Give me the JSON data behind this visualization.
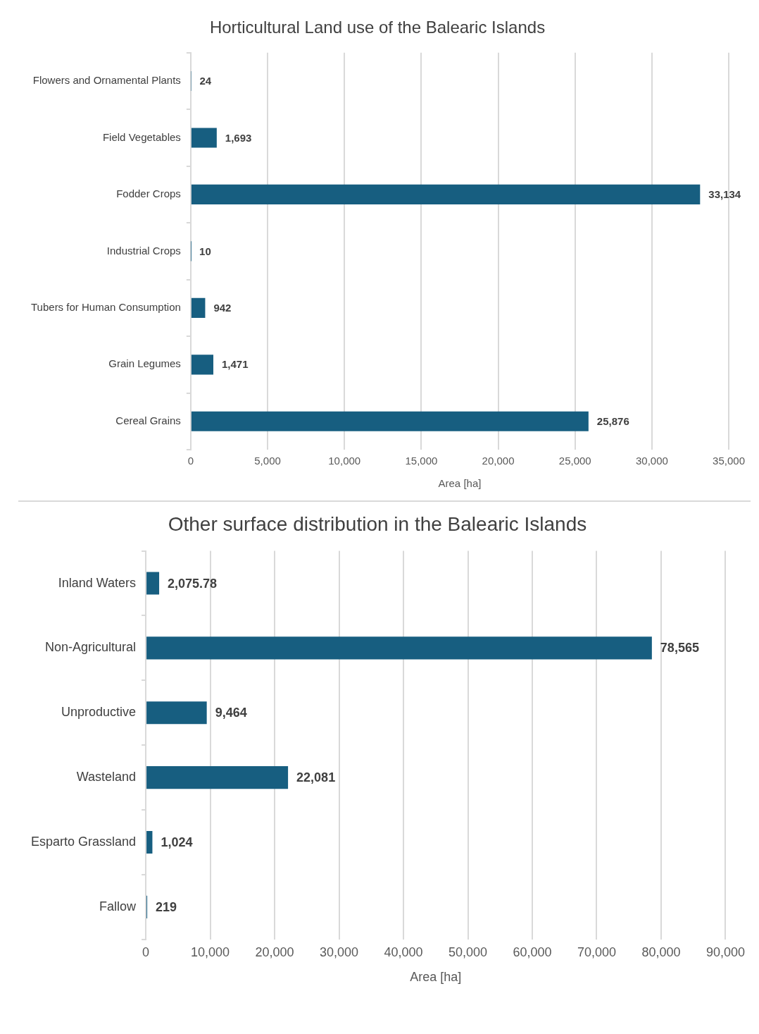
{
  "chart_data": [
    {
      "type": "bar",
      "orientation": "horizontal",
      "title": "Horticultural Land use of the Balearic Islands",
      "xlabel": "Area [ha]",
      "categories": [
        "Flowers and Ornamental Plants",
        "Field Vegetables",
        "Fodder Crops",
        "Industrial Crops",
        "Tubers for Human Consumption",
        "Grain Legumes",
        "Cereal Grains"
      ],
      "values": [
        24,
        1693,
        33134,
        10,
        942,
        1471,
        25876
      ],
      "color": "#175e80",
      "xlim": [
        0,
        35000
      ],
      "xticks": [
        0,
        {
          "value": 5000,
          "label": "5,000"
        },
        {
          "value": 10000,
          "label": "10,000"
        },
        {
          "value": 15000,
          "label": "15,000"
        },
        {
          "value": 20000,
          "label": "20,000"
        },
        {
          "value": 25000,
          "label": "25,000"
        },
        {
          "value": 30000,
          "label": "30,000"
        },
        {
          "value": 35000,
          "label": "35,000"
        }
      ],
      "grid": "x",
      "value_labels": [
        "24",
        "1,693",
        "33,134",
        "10",
        "942",
        "1,471",
        "25,876"
      ]
    },
    {
      "type": "bar",
      "orientation": "horizontal",
      "title": "Other surface distribution in the Balearic Islands",
      "xlabel": "Area [ha]",
      "categories": [
        "Inland Waters",
        "Non-Agricultural",
        "Unproductive",
        "Wasteland",
        "Esparto Grassland",
        "Fallow"
      ],
      "values": [
        2075.78,
        78565,
        9464,
        22081,
        1024,
        219
      ],
      "color": "#175e80",
      "xlim": [
        0,
        90000
      ],
      "xticks": [
        0,
        {
          "value": 10000,
          "label": "10,000"
        },
        {
          "value": 20000,
          "label": "20,000"
        },
        {
          "value": 30000,
          "label": "30,000"
        },
        {
          "value": 40000,
          "label": "40,000"
        },
        {
          "value": 50000,
          "label": "50,000"
        },
        {
          "value": 60000,
          "label": "60,000"
        },
        {
          "value": 70000,
          "label": "70,000"
        },
        {
          "value": 80000,
          "label": "80,000"
        },
        {
          "value": 90000,
          "label": "90,000"
        }
      ],
      "grid": "x",
      "value_labels": [
        "2,075.78",
        "78,565",
        "9,464",
        "22,081",
        "1,024",
        "219"
      ]
    }
  ]
}
